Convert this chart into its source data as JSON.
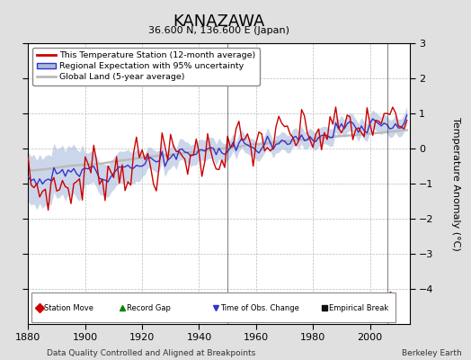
{
  "title": "KANAZAWA",
  "subtitle": "36.600 N, 136.600 E (Japan)",
  "ylabel": "Temperature Anomaly (°C)",
  "xlabel_note": "Data Quality Controlled and Aligned at Breakpoints",
  "credit": "Berkeley Earth",
  "xlim": [
    1880,
    2014
  ],
  "ylim": [
    -5,
    3
  ],
  "yticks": [
    -4,
    -3,
    -2,
    -1,
    0,
    1,
    2,
    3
  ],
  "xticks": [
    1880,
    1900,
    1920,
    1940,
    1960,
    1980,
    2000
  ],
  "bg_color": "#e0e0e0",
  "plot_bg_color": "#ffffff",
  "red_line_color": "#cc0000",
  "blue_line_color": "#3333cc",
  "blue_fill_color": "#aabbdd",
  "gray_line_color": "#bbbbbb",
  "empirical_break_years": [
    1950,
    2006
  ],
  "station_move_years": [
    2007
  ],
  "legend_labels": [
    "This Temperature Station (12-month average)",
    "Regional Expectation with 95% uncertainty",
    "Global Land (5-year average)"
  ],
  "marker_legend": [
    {
      "label": "Station Move",
      "color": "#cc0000",
      "marker": "D"
    },
    {
      "label": "Record Gap",
      "color": "#008800",
      "marker": "^"
    },
    {
      "label": "Time of Obs. Change",
      "color": "#3333cc",
      "marker": "v"
    },
    {
      "label": "Empirical Break",
      "color": "#111111",
      "marker": "s"
    }
  ]
}
